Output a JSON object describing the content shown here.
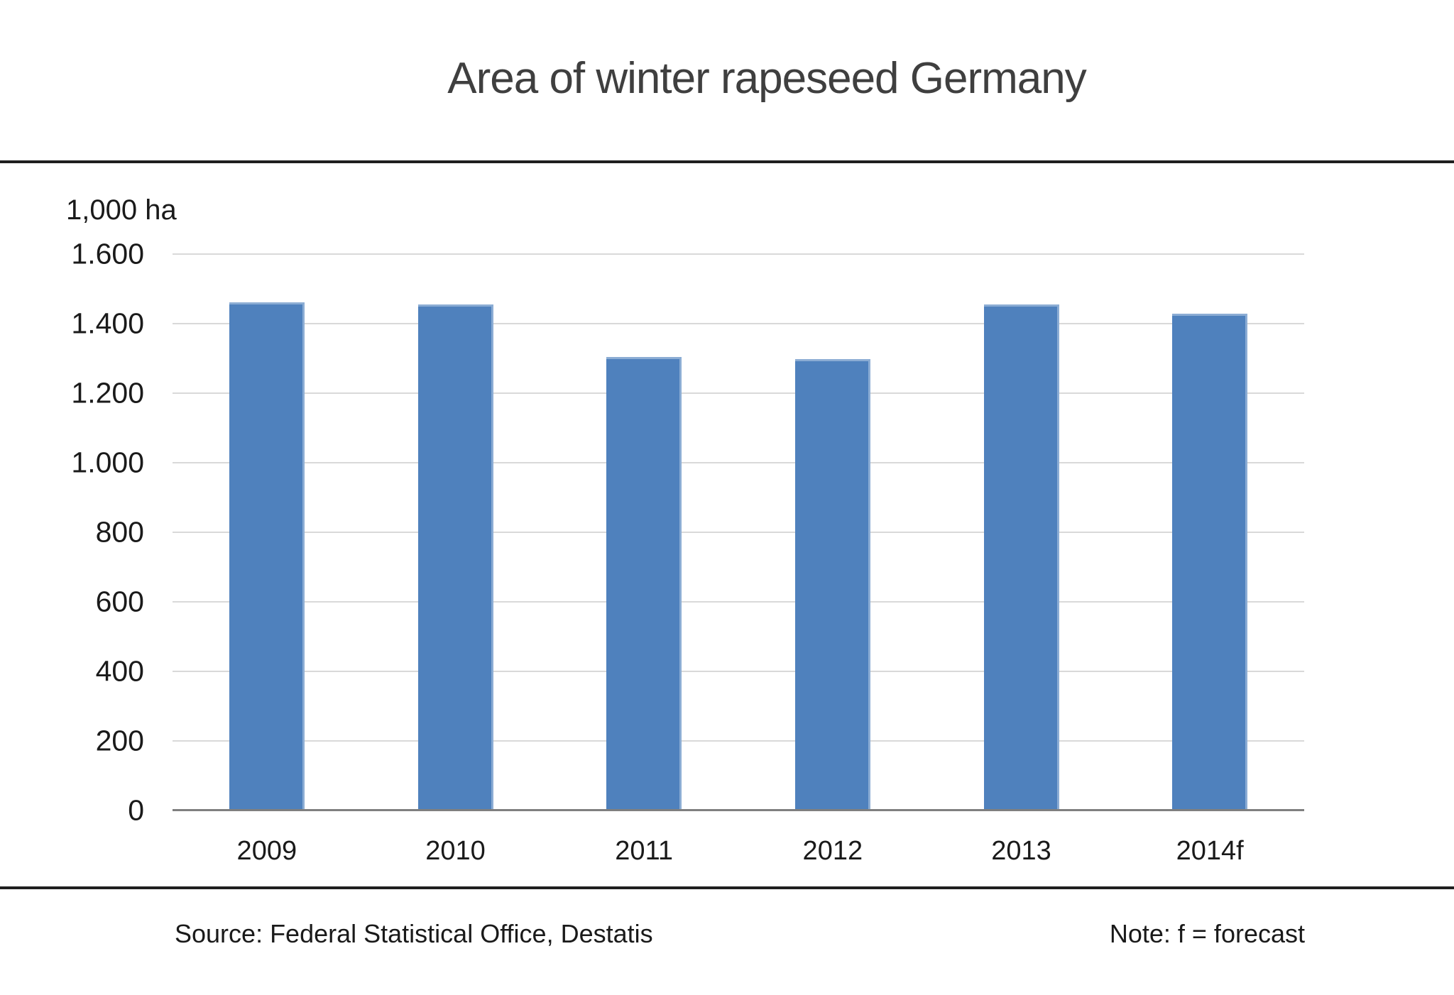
{
  "chart_data": {
    "type": "bar",
    "title": "Area of winter rapeseed Germany",
    "unit_label": "1,000 ha",
    "xlabel": "",
    "ylabel": "1,000 ha",
    "categories": [
      "2009",
      "2010",
      "2011",
      "2012",
      "2013",
      "2014f"
    ],
    "values": [
      1461,
      1455,
      1305,
      1299,
      1456,
      1428
    ],
    "ylim": [
      0,
      1600
    ],
    "y_ticks": [
      {
        "value": 1600,
        "label": "1.600"
      },
      {
        "value": 1400,
        "label": "1.400"
      },
      {
        "value": 1200,
        "label": "1.200"
      },
      {
        "value": 1000,
        "label": "1.000"
      },
      {
        "value": 800,
        "label": "800"
      },
      {
        "value": 600,
        "label": "600"
      },
      {
        "value": 400,
        "label": "400"
      },
      {
        "value": 200,
        "label": "200"
      },
      {
        "value": 0,
        "label": "0"
      }
    ],
    "grid": true,
    "legend": false,
    "colors": {
      "bar_fill": "#4f81bd",
      "bar_edge_highlight": "rgba(255,255,255,0.35)",
      "gridline": "#d9d9d9",
      "axis_line": "#7f7f7f",
      "title_text": "#3f3f3f",
      "label_text": "#1a1a1a",
      "divider_rule": "#1f1f1f"
    }
  },
  "footer": {
    "source": "Source: Federal Statistical Office, Destatis",
    "note": "Note: f = forecast"
  }
}
